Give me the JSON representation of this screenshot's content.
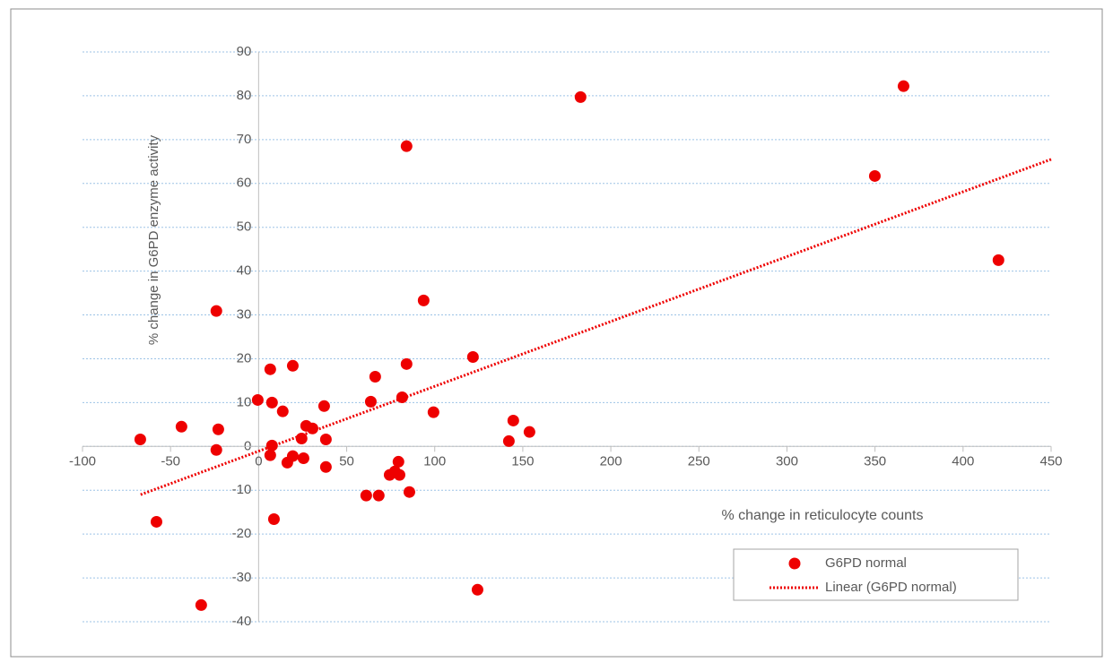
{
  "chart_data": {
    "type": "scatter",
    "x_label": "% change in reticulocyte counts",
    "y_label": "% change in G6PD enzyme activity",
    "xlim": [
      -100,
      450
    ],
    "xticks": [
      -100,
      -50,
      0,
      50,
      100,
      150,
      200,
      250,
      300,
      350,
      400,
      450
    ],
    "ylim": [
      -40,
      90
    ],
    "yticks": [
      -40,
      -30,
      -20,
      -10,
      0,
      10,
      20,
      30,
      40,
      50,
      60,
      70,
      80,
      90
    ],
    "grid": true,
    "legend": "lower right",
    "series": [
      {
        "name": "G6PD normal",
        "color": "#ee0000",
        "x": [
          -67.2,
          -58.0,
          -43.8,
          -32.6,
          -24.0,
          -22.9,
          -24.0,
          -0.5,
          6.6,
          7.6,
          7.6,
          6.6,
          8.7,
          13.7,
          16.3,
          19.4,
          19.4,
          24.4,
          25.5,
          27.0,
          30.6,
          37.2,
          38.2,
          38.2,
          61.1,
          63.7,
          66.2,
          68.2,
          74.4,
          77.4,
          79.4,
          80.0,
          81.5,
          84.0,
          84.0,
          85.6,
          93.7,
          99.3,
          121.7,
          124.3,
          142.1,
          144.6,
          153.8,
          182.8,
          349.9,
          366.2,
          420.1
        ],
        "values": [
          1.6,
          -17.2,
          4.5,
          -36.2,
          30.9,
          3.9,
          -0.8,
          10.6,
          17.6,
          10.0,
          0.2,
          -2.0,
          -16.6,
          8.0,
          -3.7,
          -2.2,
          18.4,
          1.8,
          -2.7,
          4.7,
          4.1,
          9.2,
          1.6,
          -4.7,
          -11.2,
          10.2,
          15.9,
          -11.2,
          -6.5,
          -5.7,
          -3.5,
          -6.5,
          11.2,
          18.8,
          68.5,
          -10.4,
          33.3,
          7.8,
          20.4,
          -32.7,
          1.2,
          5.9,
          3.3,
          79.7,
          61.7,
          82.2,
          42.5
        ]
      },
      {
        "name": "Linear (G6PD normal)",
        "color": "#ee0000",
        "line": "dotted",
        "x": [
          -67,
          450
        ],
        "values": [
          -11.0,
          65.5
        ]
      }
    ]
  }
}
